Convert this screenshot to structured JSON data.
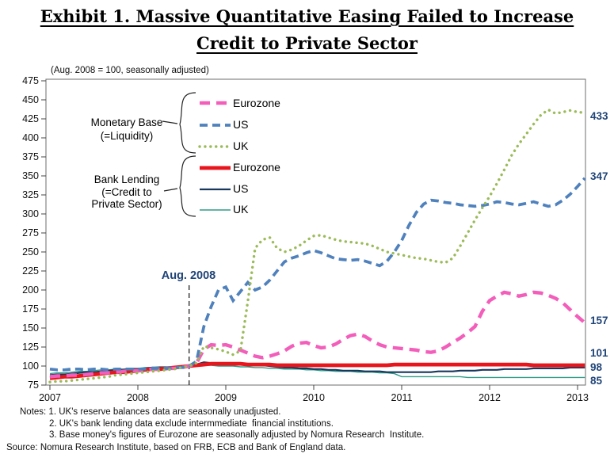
{
  "page": {
    "title_line1": "Exhibit 1. Massive Quantitative Easing Failed to Increase",
    "title_line2": "Credit to Private Sector",
    "subtitle": "(Aug. 2008 = 100, seasonally adjusted)"
  },
  "annotation": {
    "label": "Aug. 2008",
    "x": 2008.583
  },
  "notes": {
    "line1": "Notes: 1. UK's reserve balances data are seasonally unadjusted.",
    "line2": "2. UK's bank lending data exclude intermmediate  financial institutions.",
    "line3": "3. Base money's figures of Eurozone are seasonally adjusted by Nomura Research  Institute.",
    "source": "Source: Nomura Research Institute, based on FRB, ECB and Bank of England data."
  },
  "chart_data": {
    "type": "line",
    "title": "Exhibit 1. Massive Quantitative Easing Failed to Increase Credit to Private Sector",
    "subtitle": "(Aug. 2008 = 100, seasonally adjusted)",
    "x_start": 2007.0,
    "x_step": "monthly",
    "x_ticks": [
      2007,
      2008,
      2009,
      2010,
      2011,
      2012,
      2013
    ],
    "y_ticks": [
      75,
      100,
      125,
      150,
      175,
      200,
      225,
      250,
      275,
      300,
      325,
      350,
      375,
      400,
      425,
      450,
      475
    ],
    "ylim": [
      75,
      475
    ],
    "xlim": [
      2007.0,
      2013.1
    ],
    "grid": false,
    "legend_position": "top-left-inside",
    "legend_groups": [
      {
        "label": "Monetary Base\n(=Liquidity)"
      },
      {
        "label": "Bank Lending\n(=Credit to\nPrivate Sector)"
      }
    ],
    "series": [
      {
        "id": "mb_ez",
        "name": "Eurozone",
        "group": "Monetary Base",
        "color": "#F35EBB",
        "width": 4.4,
        "dash": "13 8",
        "cap": "butt",
        "end_label": "157",
        "values": [
          86,
          87,
          87,
          88,
          88,
          89,
          90,
          91,
          91,
          92,
          93,
          94,
          94,
          95,
          96,
          96,
          97,
          97,
          98,
          100,
          104,
          122,
          128,
          127,
          128,
          125,
          121,
          117,
          113,
          111,
          113,
          116,
          120,
          126,
          130,
          131,
          127,
          124,
          125,
          129,
          135,
          140,
          142,
          139,
          133,
          128,
          125,
          124,
          123,
          122,
          121,
          119,
          118,
          120,
          125,
          131,
          137,
          144,
          152,
          172,
          186,
          192,
          197,
          195,
          192,
          194,
          197,
          196,
          193,
          189,
          183,
          174,
          165,
          157
        ]
      },
      {
        "id": "mb_us",
        "name": "US",
        "group": "Monetary Base",
        "color": "#4F81BD",
        "width": 3.7,
        "dash": "10 6",
        "cap": "butt",
        "end_label": "347",
        "values": [
          96,
          95,
          95,
          96,
          96,
          95,
          96,
          96,
          95,
          96,
          96,
          96,
          96,
          96,
          97,
          97,
          97,
          98,
          98,
          100,
          106,
          152,
          178,
          200,
          204,
          186,
          198,
          210,
          200,
          204,
          213,
          225,
          237,
          242,
          245,
          249,
          252,
          249,
          245,
          241,
          240,
          239,
          240,
          238,
          235,
          232,
          238,
          250,
          265,
          285,
          302,
          313,
          318,
          317,
          315,
          314,
          312,
          311,
          310,
          311,
          313,
          316,
          315,
          313,
          312,
          314,
          316,
          313,
          310,
          312,
          318,
          326,
          336,
          347
        ]
      },
      {
        "id": "mb_uk",
        "name": "UK",
        "group": "Monetary Base",
        "color": "#9BBB59",
        "width": 3.4,
        "dash": "0.1 6.8",
        "cap": "round",
        "end_label": "433",
        "values": [
          79,
          80,
          80,
          81,
          82,
          83,
          84,
          85,
          86,
          88,
          89,
          90,
          91,
          92,
          93,
          94,
          95,
          96,
          98,
          100,
          104,
          126,
          124,
          122,
          119,
          115,
          120,
          185,
          255,
          266,
          269,
          255,
          250,
          253,
          258,
          265,
          271,
          272,
          269,
          266,
          264,
          263,
          262,
          261,
          258,
          254,
          250,
          248,
          246,
          244,
          242,
          241,
          239,
          237,
          236,
          242,
          258,
          275,
          292,
          308,
          323,
          340,
          358,
          377,
          392,
          405,
          418,
          430,
          437,
          432,
          434,
          436,
          434,
          433
        ]
      },
      {
        "id": "bl_ez",
        "name": "Eurozone",
        "group": "Bank Lending",
        "color": "#E8151C",
        "width": 4.8,
        "dash": "",
        "cap": "butt",
        "end_label": "101",
        "values": [
          84,
          85,
          86,
          86,
          87,
          88,
          89,
          90,
          91,
          92,
          92,
          93,
          94,
          95,
          96,
          96,
          97,
          98,
          99,
          100,
          101,
          102,
          103,
          103,
          103,
          103,
          103,
          102,
          102,
          102,
          102,
          101,
          101,
          101,
          101,
          101,
          101,
          101,
          101,
          101,
          101,
          101,
          101,
          101,
          101,
          101,
          101,
          102,
          102,
          102,
          102,
          102,
          102,
          102,
          102,
          102,
          102,
          102,
          102,
          102,
          102,
          102,
          102,
          102,
          102,
          102,
          101,
          101,
          101,
          101,
          101,
          101,
          101,
          101
        ]
      },
      {
        "id": "bl_us",
        "name": "US",
        "group": "Bank Lending",
        "color": "#17375D",
        "width": 2.2,
        "dash": "",
        "cap": "butt",
        "end_label": "98",
        "values": [
          88,
          89,
          89,
          90,
          91,
          92,
          92,
          93,
          94,
          95,
          95,
          96,
          96,
          97,
          98,
          98,
          98,
          99,
          99,
          100,
          102,
          105,
          104,
          103,
          103,
          103,
          102,
          102,
          101,
          101,
          100,
          99,
          98,
          98,
          97,
          97,
          96,
          96,
          95,
          95,
          94,
          94,
          94,
          93,
          93,
          93,
          92,
          92,
          92,
          92,
          92,
          92,
          92,
          93,
          93,
          93,
          94,
          94,
          94,
          95,
          95,
          95,
          96,
          96,
          96,
          96,
          97,
          97,
          97,
          97,
          97,
          98,
          98,
          98
        ]
      },
      {
        "id": "bl_uk",
        "name": "UK",
        "group": "Bank Lending",
        "color": "#2E9C87",
        "width": 1.4,
        "dash": "",
        "cap": "butt",
        "end_label": "85",
        "values": [
          90,
          91,
          91,
          92,
          93,
          93,
          94,
          95,
          95,
          96,
          96,
          97,
          97,
          98,
          98,
          99,
          99,
          99,
          100,
          100,
          100,
          101,
          101,
          100,
          100,
          100,
          99,
          99,
          98,
          98,
          97,
          97,
          96,
          96,
          96,
          95,
          95,
          94,
          94,
          93,
          93,
          93,
          92,
          92,
          92,
          91,
          91,
          90,
          86,
          86,
          86,
          86,
          86,
          86,
          86,
          86,
          86,
          85,
          85,
          85,
          85,
          85,
          85,
          85,
          85,
          85,
          85,
          85,
          85,
          85,
          85,
          85,
          85,
          85
        ]
      }
    ]
  }
}
